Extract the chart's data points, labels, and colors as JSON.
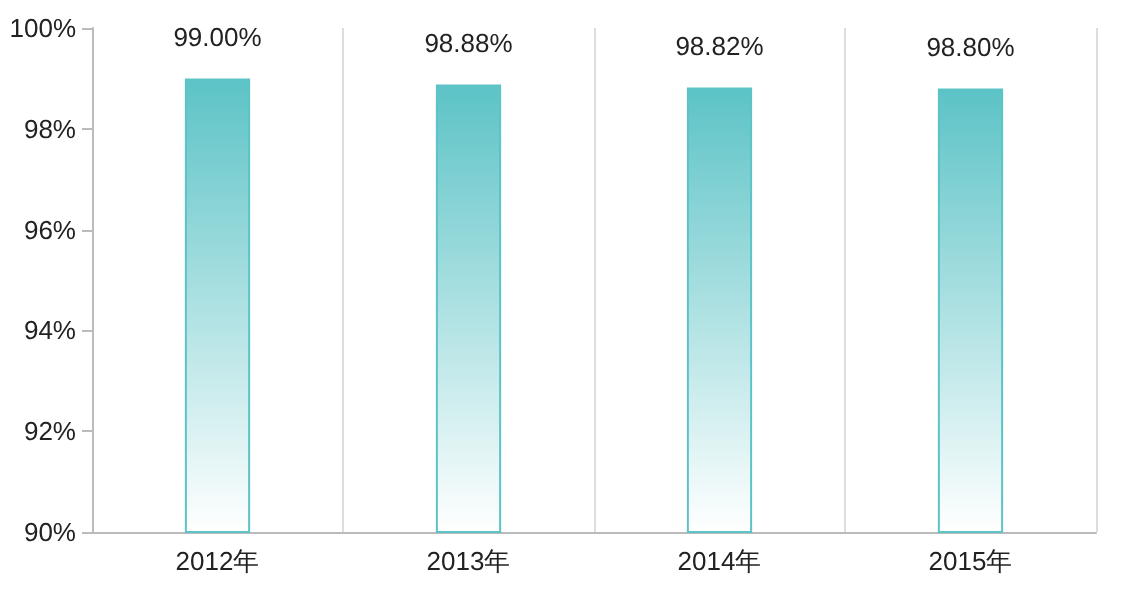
{
  "chart_data": {
    "type": "bar",
    "categories": [
      "2012年",
      "2013年",
      "2014年",
      "2015年"
    ],
    "values": [
      99.0,
      98.88,
      98.82,
      98.8
    ],
    "value_labels": [
      "99.00%",
      "98.88%",
      "98.82%",
      "98.80%"
    ],
    "color": "#5cc3c6",
    "ylim": [
      90,
      100
    ],
    "yticks": [
      {
        "value": 90,
        "label": "90%"
      },
      {
        "value": 92,
        "label": "92%"
      },
      {
        "value": 94,
        "label": "94%"
      },
      {
        "value": 96,
        "label": "96%"
      },
      {
        "value": 98,
        "label": "98%"
      },
      {
        "value": 100,
        "label": "100%"
      }
    ],
    "grid": "x"
  }
}
